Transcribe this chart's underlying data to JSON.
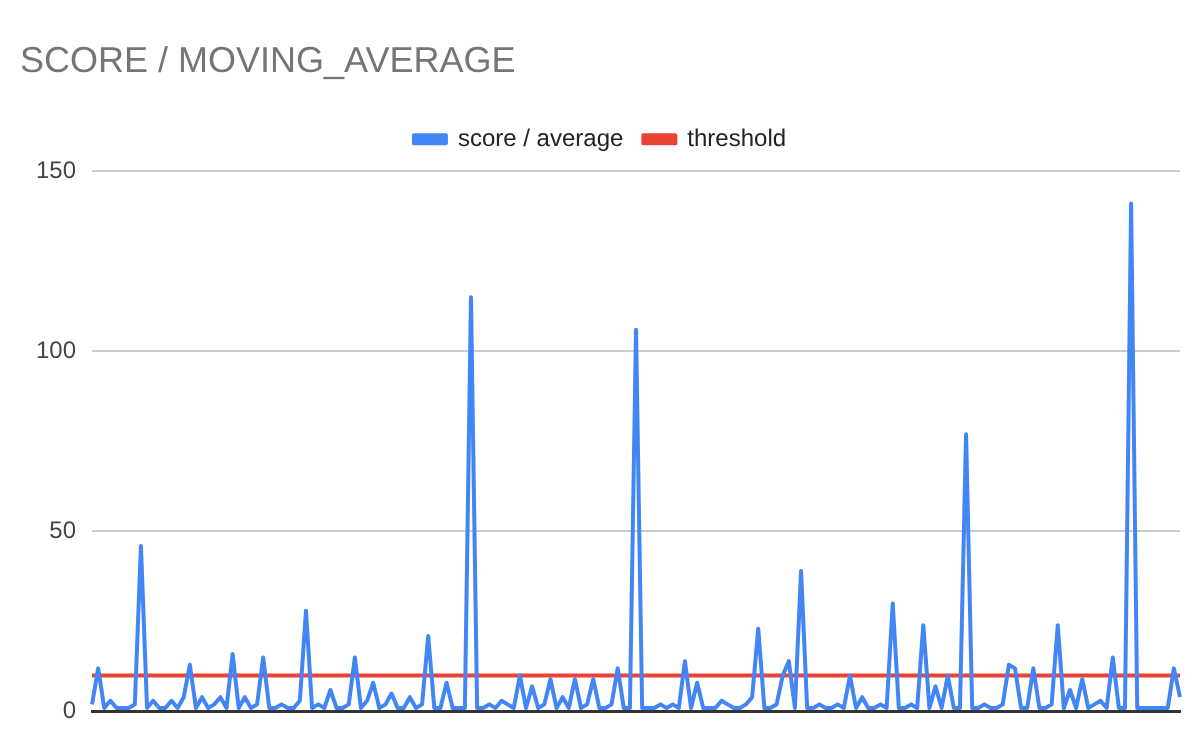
{
  "chart_data": {
    "type": "line",
    "title": "SCORE / MOVING_AVERAGE",
    "categories": [
      null,
      null,
      null,
      null,
      null,
      null,
      null,
      null,
      null,
      null,
      null,
      null,
      null,
      null,
      null,
      null,
      null,
      null,
      null,
      null,
      null,
      null,
      null,
      null,
      null,
      null,
      null,
      null,
      null,
      null,
      null,
      null,
      null,
      null,
      null,
      null,
      null,
      null,
      null,
      null,
      null,
      null,
      null,
      null,
      null,
      null,
      null,
      null,
      null,
      null,
      null,
      null,
      null,
      null,
      null,
      null,
      null,
      null,
      null,
      null,
      null,
      null,
      null,
      null,
      null,
      null,
      null,
      null,
      null,
      null,
      null,
      null,
      null,
      null,
      null,
      null,
      null,
      null,
      null,
      null,
      null,
      null,
      null,
      null,
      null,
      null,
      null,
      null,
      null,
      null,
      null,
      null,
      null,
      null,
      null,
      null,
      null,
      null,
      null,
      null,
      null,
      null,
      null,
      null,
      null,
      null,
      null,
      null,
      null,
      null,
      null,
      null,
      null,
      null,
      null,
      null,
      null,
      null,
      null,
      null,
      null,
      null,
      null,
      null,
      null,
      null,
      null,
      null,
      null,
      null,
      null,
      null,
      null,
      null,
      null,
      null,
      null,
      null,
      null,
      null,
      null,
      null,
      null,
      null,
      null,
      null,
      null,
      null,
      null,
      null,
      null,
      null,
      null,
      null,
      null,
      null,
      null,
      null,
      null,
      null,
      null,
      null,
      null,
      null,
      null,
      null,
      null,
      null,
      null,
      null,
      null,
      null,
      null,
      null,
      null,
      null,
      null,
      null,
      null
    ],
    "series": [
      {
        "name": "score / average",
        "color": "#4285f4",
        "values": [
          2,
          12,
          1,
          3,
          1,
          1,
          1,
          2,
          46,
          1,
          3,
          1,
          1,
          3,
          1,
          4,
          13,
          1,
          4,
          1,
          2,
          4,
          1,
          16,
          1,
          4,
          1,
          2,
          15,
          1,
          1,
          2,
          1,
          1,
          3,
          28,
          1,
          2,
          1,
          6,
          1,
          1,
          2,
          15,
          1,
          3,
          8,
          1,
          2,
          5,
          1,
          1,
          4,
          1,
          2,
          21,
          1,
          1,
          8,
          1,
          1,
          1,
          115,
          1,
          1,
          2,
          1,
          3,
          2,
          1,
          10,
          1,
          7,
          1,
          2,
          9,
          1,
          4,
          1,
          9,
          1,
          2,
          9,
          1,
          1,
          2,
          12,
          1,
          1,
          106,
          1,
          1,
          1,
          2,
          1,
          2,
          1,
          14,
          1,
          8,
          1,
          1,
          1,
          3,
          2,
          1,
          1,
          2,
          4,
          23,
          1,
          1,
          2,
          10,
          14,
          1,
          39,
          1,
          1,
          2,
          1,
          1,
          2,
          1,
          10,
          1,
          4,
          1,
          1,
          2,
          1,
          30,
          1,
          1,
          2,
          1,
          24,
          1,
          7,
          1,
          10,
          1,
          1,
          77,
          1,
          1,
          2,
          1,
          1,
          2,
          13,
          12,
          1,
          1,
          12,
          1,
          1,
          2,
          24,
          1,
          6,
          1,
          9,
          1,
          2,
          3,
          1,
          15,
          1,
          1,
          141,
          1,
          1,
          1,
          1,
          1,
          1,
          12,
          4
        ]
      },
      {
        "name": "threshold",
        "color": "#ea4335",
        "values": [
          10,
          10,
          10,
          10,
          10,
          10,
          10,
          10,
          10,
          10,
          10,
          10,
          10,
          10,
          10,
          10,
          10,
          10,
          10,
          10,
          10,
          10,
          10,
          10,
          10,
          10,
          10,
          10,
          10,
          10,
          10,
          10,
          10,
          10,
          10,
          10,
          10,
          10,
          10,
          10,
          10,
          10,
          10,
          10,
          10,
          10,
          10,
          10,
          10,
          10,
          10,
          10,
          10,
          10,
          10,
          10,
          10,
          10,
          10,
          10,
          10,
          10,
          10,
          10,
          10,
          10,
          10,
          10,
          10,
          10,
          10,
          10,
          10,
          10,
          10,
          10,
          10,
          10,
          10,
          10,
          10,
          10,
          10,
          10,
          10,
          10,
          10,
          10,
          10,
          10,
          10,
          10,
          10,
          10,
          10,
          10,
          10,
          10,
          10,
          10,
          10,
          10,
          10,
          10,
          10,
          10,
          10,
          10,
          10,
          10,
          10,
          10,
          10,
          10,
          10,
          10,
          10,
          10,
          10,
          10,
          10,
          10,
          10,
          10,
          10,
          10,
          10,
          10,
          10,
          10,
          10,
          10,
          10,
          10,
          10,
          10,
          10,
          10,
          10,
          10,
          10,
          10,
          10,
          10,
          10,
          10,
          10,
          10,
          10,
          10,
          10,
          10,
          10,
          10,
          10,
          10,
          10,
          10,
          10,
          10,
          10,
          10,
          10,
          10,
          10,
          10,
          10,
          10,
          10,
          10,
          10,
          10,
          10,
          10,
          10,
          10,
          10,
          10,
          10
        ]
      }
    ],
    "ylim": [
      0,
      150
    ],
    "yticks": [
      0,
      50,
      100,
      150
    ],
    "grid": "y",
    "legend": "top",
    "tick_labels": "y",
    "marker": "none",
    "line_style": "solid"
  }
}
